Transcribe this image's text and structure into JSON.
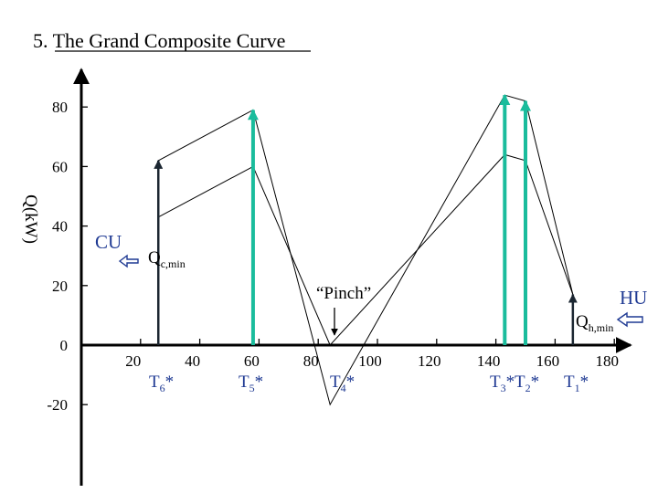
{
  "title": "5. The Grand Composite Curve",
  "colors": {
    "axis": "#000000",
    "curve": "#000000",
    "stream_arrow": "#1ABC9C",
    "cold_utility_arrow": "#1B2631",
    "utility_label": "#1F3A93",
    "utility_arrow_hollow": "#1F3A93"
  },
  "axes": {
    "ylabel": "Q(kW)",
    "y_ticks": [
      "80",
      "60",
      "40",
      "20",
      "0",
      "-20"
    ],
    "x_ticks": [
      "20",
      "40",
      "60",
      "80",
      "100",
      "120",
      "140",
      "160",
      "180"
    ]
  },
  "annotations": {
    "cold_utility": "CU",
    "cold_min_main": "Q",
    "cold_min_sub": "c,min",
    "hot_utility": "HU",
    "hot_min_main": "Q",
    "hot_min_sub": "h,min",
    "pinch": "“Pinch”"
  },
  "temperature_labels": [
    {
      "main": "T",
      "sub": "6",
      "star": "*"
    },
    {
      "main": "T",
      "sub": "5",
      "star": "*"
    },
    {
      "main": "T",
      "sub": "4",
      "star": "*"
    },
    {
      "main": "T",
      "sub": "3",
      "star": "*"
    },
    {
      "main": "T",
      "sub": "2",
      "star": "*"
    },
    {
      "main": "T",
      "sub": "1",
      "star": "*"
    }
  ],
  "chart_data": {
    "type": "line",
    "title": "5. The Grand Composite Curve",
    "xlabel": "",
    "ylabel": "Q(kW)",
    "xlim": [
      0,
      185
    ],
    "ylim": [
      -30,
      90
    ],
    "x_ticks": [
      20,
      40,
      60,
      80,
      100,
      120,
      140,
      160,
      180
    ],
    "y_ticks": [
      80,
      60,
      40,
      20,
      0,
      -20
    ],
    "series": [
      {
        "points": [
          [
            26,
            0
          ],
          [
            26,
            62
          ],
          [
            58,
            79
          ],
          [
            84,
            -20
          ],
          [
            143,
            84
          ],
          [
            150,
            82
          ],
          [
            166,
            17
          ],
          [
            166,
            0
          ]
        ]
      },
      {
        "points": [
          [
            26,
            43
          ],
          [
            58,
            60
          ],
          [
            84,
            0
          ],
          [
            143,
            64
          ],
          [
            150,
            62
          ],
          [
            166,
            17
          ]
        ]
      }
    ],
    "verticals": [
      {
        "x": 26,
        "y0": 0,
        "y1": 62,
        "color": "#1B2631"
      },
      {
        "x": 58,
        "y0": 0,
        "y1": 79,
        "color": "#1ABC9C"
      },
      {
        "x": 143,
        "y0": 0,
        "y1": 84,
        "color": "#1ABC9C"
      },
      {
        "x": 150,
        "y0": 0,
        "y1": 82,
        "color": "#1ABC9C"
      },
      {
        "x": 166,
        "y0": 0,
        "y1": 17,
        "color": "#1B2631"
      }
    ]
  }
}
